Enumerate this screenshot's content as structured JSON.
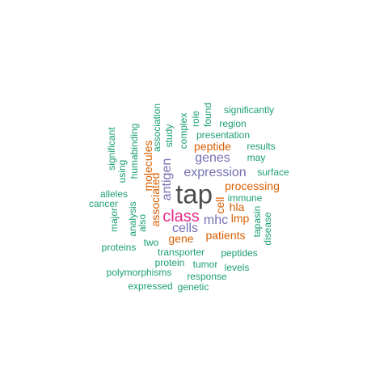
{
  "palette": {
    "tier1": "#4d4d4d",
    "tier2": "#e7298a",
    "tier3": "#7570b3",
    "tier4": "#d95f02",
    "tier5": "#1b9e77"
  },
  "words": [
    {
      "text": "tap",
      "tier": "tier1"
    },
    {
      "text": "class",
      "tier": "tier2"
    },
    {
      "text": "expression",
      "tier": "tier3"
    },
    {
      "text": "genes",
      "tier": "tier3"
    },
    {
      "text": "antigen",
      "tier": "tier3"
    },
    {
      "text": "cells",
      "tier": "tier3"
    },
    {
      "text": "mhc",
      "tier": "tier3"
    },
    {
      "text": "molecules",
      "tier": "tier4"
    },
    {
      "text": "associated",
      "tier": "tier4"
    },
    {
      "text": "peptide",
      "tier": "tier4"
    },
    {
      "text": "processing",
      "tier": "tier4"
    },
    {
      "text": "cell",
      "tier": "tier4"
    },
    {
      "text": "hla",
      "tier": "tier4"
    },
    {
      "text": "lmp",
      "tier": "tier4"
    },
    {
      "text": "gene",
      "tier": "tier4"
    },
    {
      "text": "patients",
      "tier": "tier4"
    },
    {
      "text": "significantly",
      "tier": "tier5"
    },
    {
      "text": "region",
      "tier": "tier5"
    },
    {
      "text": "presentation",
      "tier": "tier5"
    },
    {
      "text": "results",
      "tier": "tier5"
    },
    {
      "text": "may",
      "tier": "tier5"
    },
    {
      "text": "surface",
      "tier": "tier5"
    },
    {
      "text": "immune",
      "tier": "tier5"
    },
    {
      "text": "tapasin",
      "tier": "tier5"
    },
    {
      "text": "disease",
      "tier": "tier5"
    },
    {
      "text": "peptides",
      "tier": "tier5"
    },
    {
      "text": "tumor",
      "tier": "tier5"
    },
    {
      "text": "levels",
      "tier": "tier5"
    },
    {
      "text": "response",
      "tier": "tier5"
    },
    {
      "text": "genetic",
      "tier": "tier5"
    },
    {
      "text": "expressed",
      "tier": "tier5"
    },
    {
      "text": "polymorphisms",
      "tier": "tier5"
    },
    {
      "text": "protein",
      "tier": "tier5"
    },
    {
      "text": "transporter",
      "tier": "tier5"
    },
    {
      "text": "two",
      "tier": "tier5"
    },
    {
      "text": "proteins",
      "tier": "tier5"
    },
    {
      "text": "major",
      "tier": "tier5"
    },
    {
      "text": "cancer",
      "tier": "tier5"
    },
    {
      "text": "alleles",
      "tier": "tier5"
    },
    {
      "text": "significant",
      "tier": "tier5"
    },
    {
      "text": "using",
      "tier": "tier5"
    },
    {
      "text": "human",
      "tier": "tier5"
    },
    {
      "text": "binding",
      "tier": "tier5"
    },
    {
      "text": "analysis",
      "tier": "tier5"
    },
    {
      "text": "also",
      "tier": "tier5"
    },
    {
      "text": "association",
      "tier": "tier5"
    },
    {
      "text": "study",
      "tier": "tier5"
    },
    {
      "text": "complex",
      "tier": "tier5"
    },
    {
      "text": "role",
      "tier": "tier5"
    },
    {
      "text": "found",
      "tier": "tier5"
    }
  ]
}
